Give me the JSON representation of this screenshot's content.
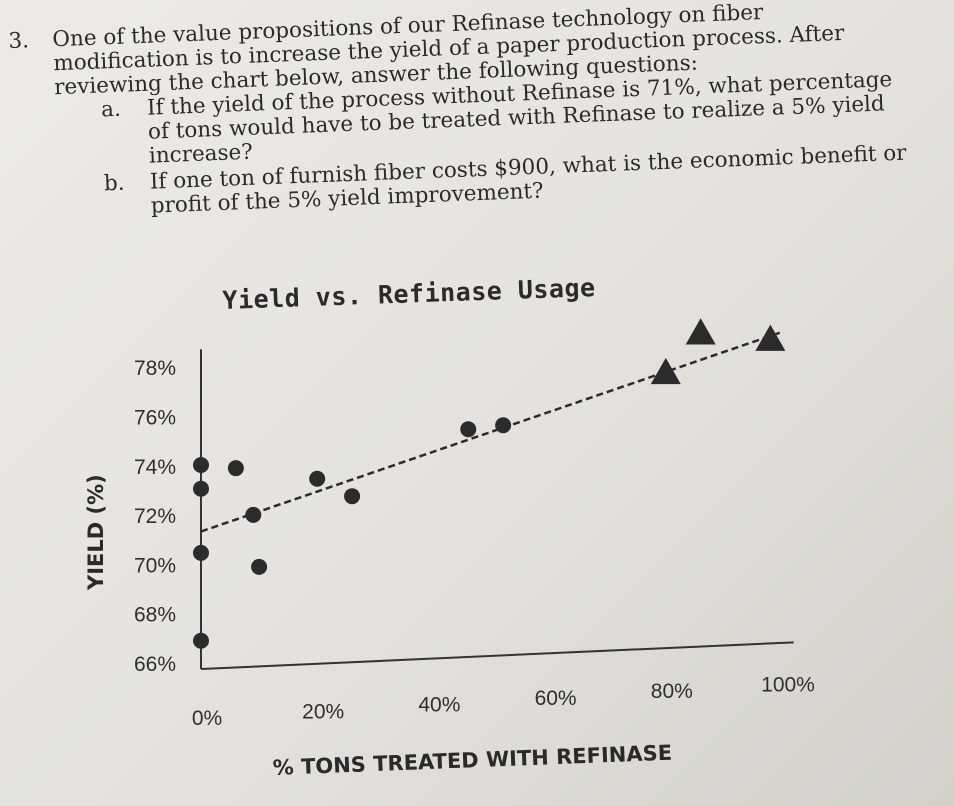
{
  "question": {
    "number": "3.",
    "intro_lines": [
      "One of the value propositions of our Refinase technology on fiber",
      "modification is to increase the yield of a paper production process. After",
      "reviewing the chart below, answer the following questions:"
    ],
    "sub_questions": [
      {
        "letter": "a.",
        "lines": [
          "If the yield of the process without Refinase is 71%, what percentage",
          "of tons would have to be treated with Refinase to realize a 5% yield",
          "increase?"
        ]
      },
      {
        "letter": "b.",
        "lines": [
          "If one ton of furnish fiber costs $900, what is the economic benefit or",
          "profit of the 5% yield improvement?"
        ]
      }
    ]
  },
  "chart_data": {
    "type": "scatter",
    "title": "Yield vs. Refinase Usage",
    "xlabel": "% TONS TREATED WITH REFINASE",
    "ylabel": "YIELD (%)",
    "x_ticks": [
      "0%",
      "20%",
      "40%",
      "60%",
      "80%",
      "100%"
    ],
    "y_ticks": [
      "66%",
      "68%",
      "70%",
      "72%",
      "74%",
      "76%",
      "78%"
    ],
    "xlim": [
      0,
      100
    ],
    "ylim": [
      66,
      79
    ],
    "series": [
      {
        "marker": "circle",
        "color": "#2b2b2b",
        "points": [
          {
            "x": 0,
            "y": 74.0
          },
          {
            "x": 0,
            "y": 73.0
          },
          {
            "x": 0,
            "y": 70.3
          },
          {
            "x": 0,
            "y": 66.6
          },
          {
            "x": 6,
            "y": 73.8
          },
          {
            "x": 9,
            "y": 71.8
          },
          {
            "x": 10,
            "y": 69.6
          },
          {
            "x": 20,
            "y": 73.2
          },
          {
            "x": 26,
            "y": 72.4
          },
          {
            "x": 46,
            "y": 75.0
          },
          {
            "x": 52,
            "y": 75.1
          }
        ]
      },
      {
        "marker": "triangle",
        "color": "#2b2b2b",
        "points": [
          {
            "x": 80,
            "y": 77.0
          },
          {
            "x": 86,
            "y": 78.6
          },
          {
            "x": 98,
            "y": 78.2
          }
        ]
      }
    ],
    "trendline": {
      "style": "dashed",
      "x": [
        0,
        100
      ],
      "y": [
        71.2,
        78.5
      ]
    },
    "grid": false,
    "legend": "none"
  }
}
